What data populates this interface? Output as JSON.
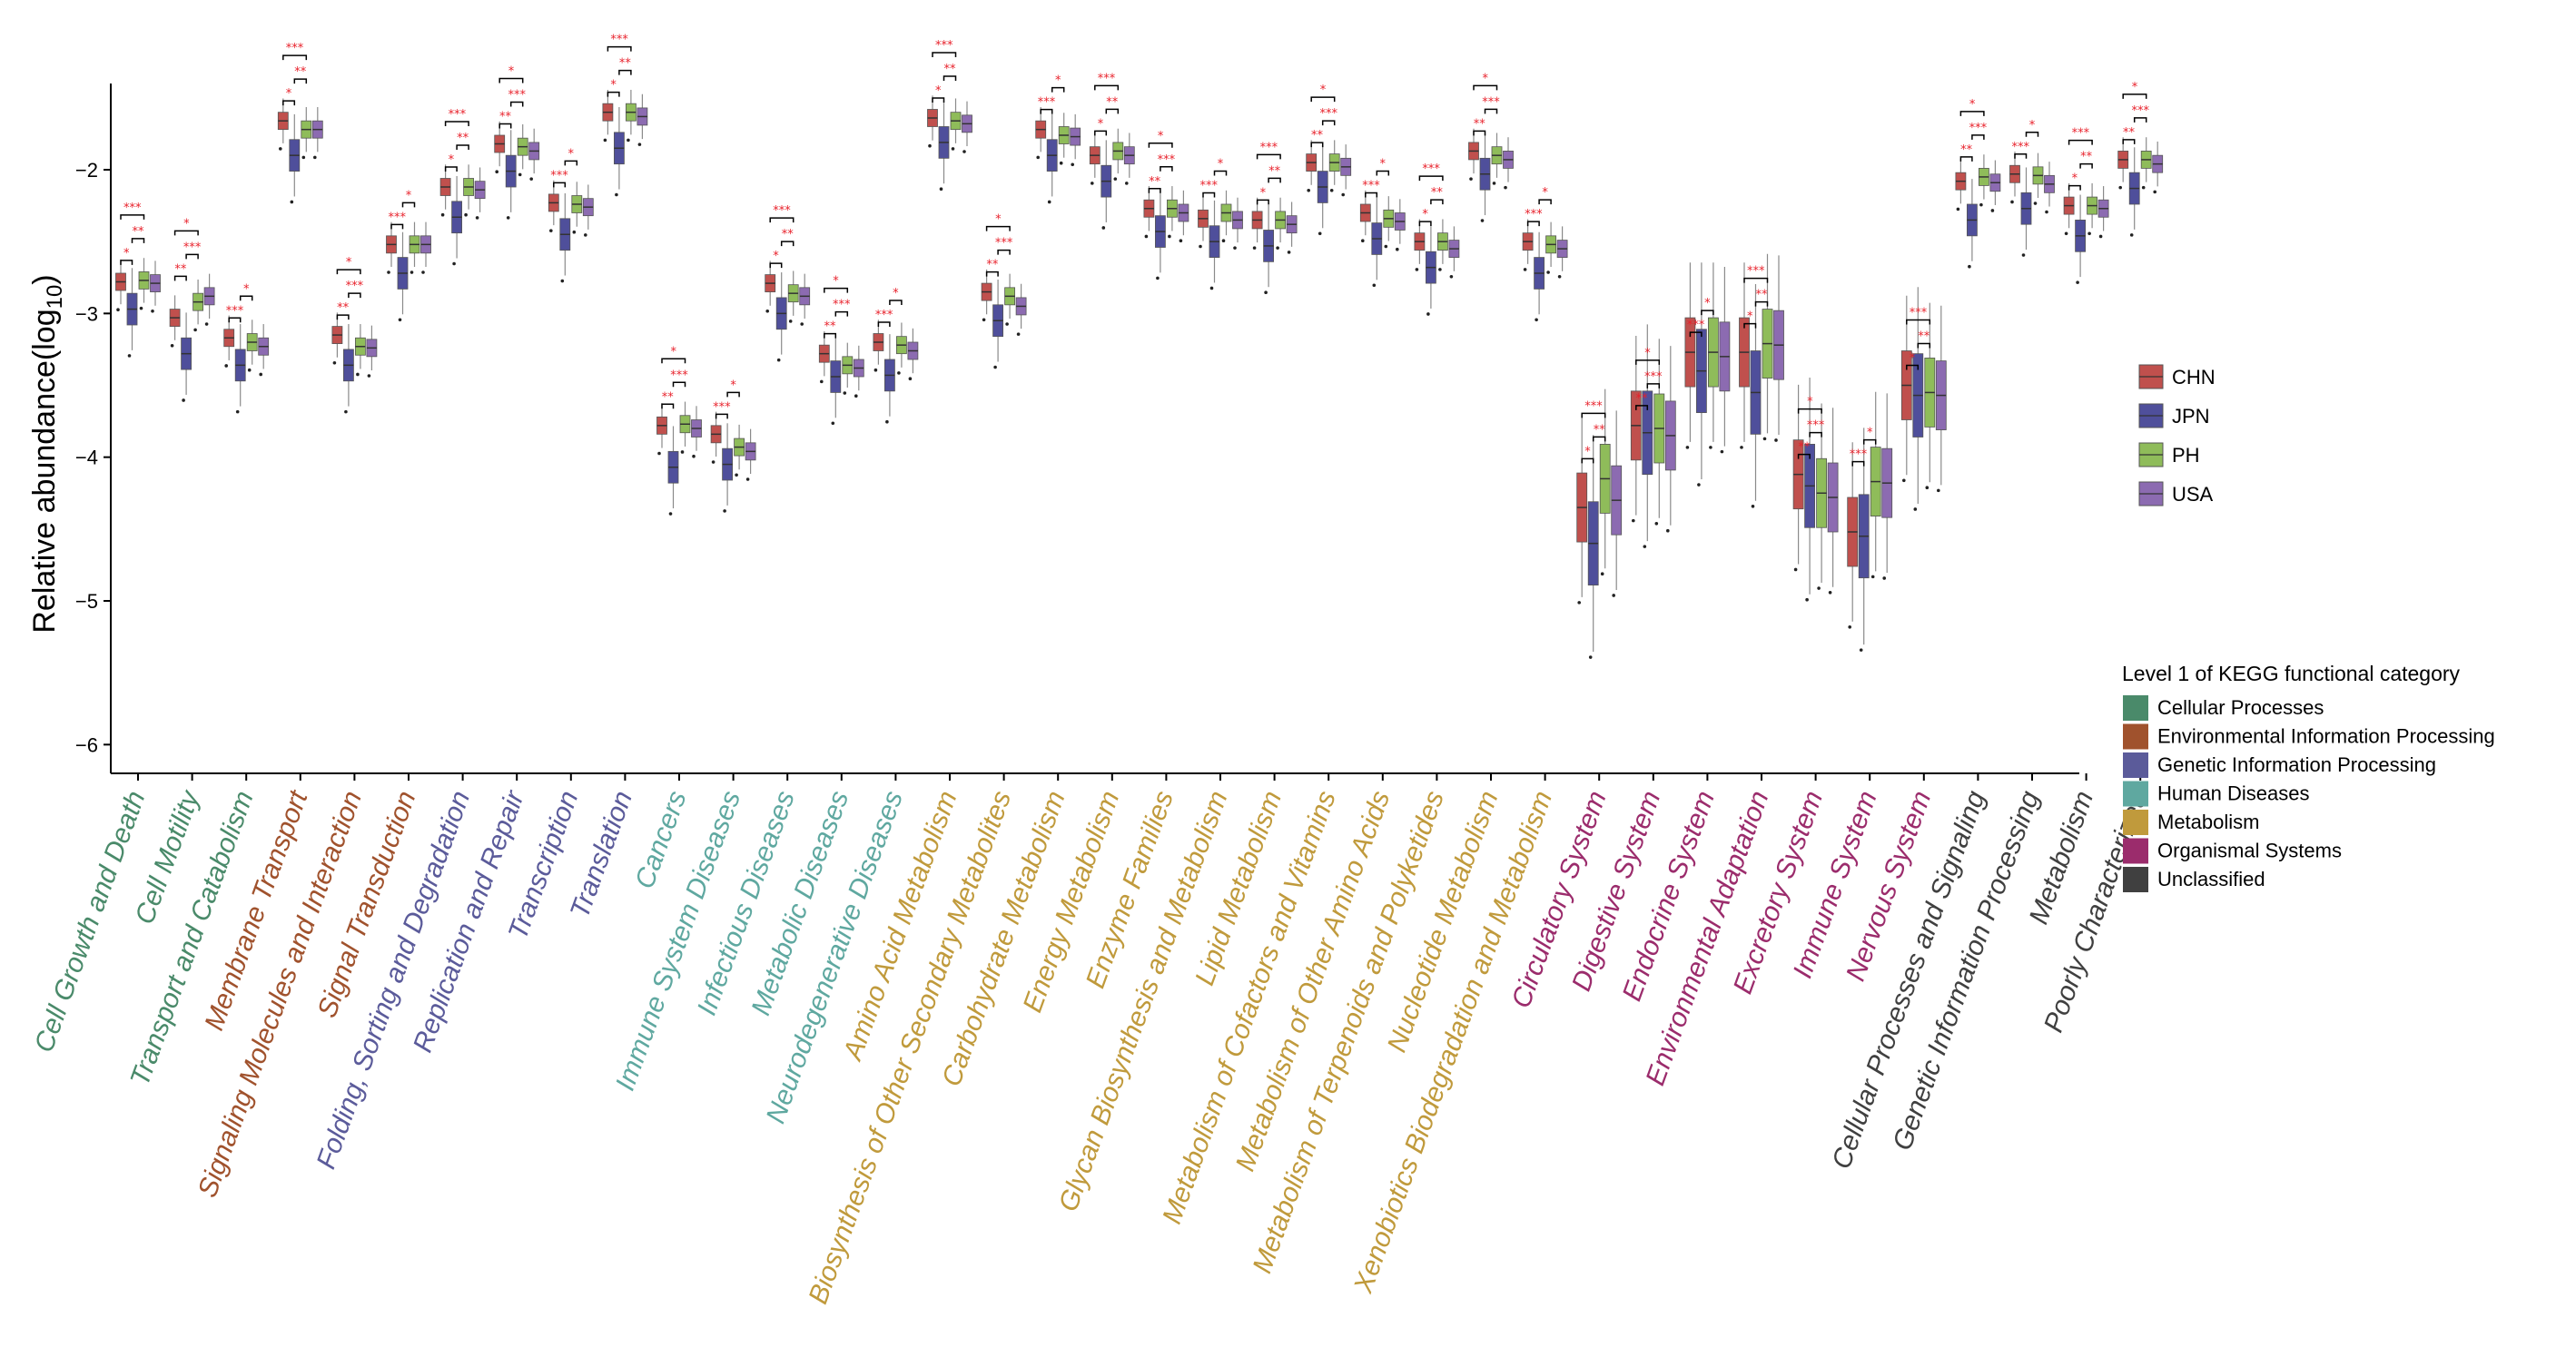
{
  "chart_data": {
    "type": "box",
    "title": "",
    "xlabel": "",
    "ylabel": "Relative abundance(log",
    "ylabel_sub": "10",
    "ylabel_close": ")",
    "ylim": [
      -6.2,
      -1.4
    ],
    "yticks": [
      -2,
      -3,
      -4,
      -5,
      -6
    ],
    "ytick_labels": [
      "−2",
      "−3",
      "−4",
      "−5",
      "−6"
    ],
    "series_names": [
      "CHN",
      "JPN",
      "PH",
      "USA"
    ],
    "series_colors": [
      "#c0504d",
      "#4f4f9b",
      "#8fbc5a",
      "#8c6bb1"
    ],
    "legend_position": "right",
    "legend2_title": "Level 1 of KEGG functional category",
    "level1": [
      {
        "name": "Cellular Processes",
        "color": "#4a8a6a"
      },
      {
        "name": "Environmental Information Processing",
        "color": "#a0522d"
      },
      {
        "name": "Genetic Information Processing",
        "color": "#5b5b9a"
      },
      {
        "name": "Human Diseases",
        "color": "#5fa8a0"
      },
      {
        "name": "Metabolism",
        "color": "#c09a3c"
      },
      {
        "name": "Organismal Systems",
        "color": "#9b2c6c"
      },
      {
        "name": "Unclassified",
        "color": "#404040"
      }
    ],
    "categories": [
      {
        "name": "Cell Growth and Death",
        "level1": 0,
        "medians": [
          -2.78,
          -2.97,
          -2.77,
          -2.79
        ]
      },
      {
        "name": "Cell Motility",
        "level1": 0,
        "medians": [
          -3.03,
          -3.28,
          -2.92,
          -2.88
        ]
      },
      {
        "name": "Transport and Catabolism",
        "level1": 0,
        "medians": [
          -3.17,
          -3.36,
          -3.2,
          -3.23
        ]
      },
      {
        "name": "Membrane Transport",
        "level1": 1,
        "medians": [
          -1.66,
          -1.9,
          -1.72,
          -1.72
        ]
      },
      {
        "name": "Signaling Molecules and Interaction",
        "level1": 1,
        "medians": [
          -3.15,
          -3.36,
          -3.23,
          -3.24
        ]
      },
      {
        "name": "Signal Transduction",
        "level1": 1,
        "medians": [
          -2.52,
          -2.72,
          -2.52,
          -2.52
        ]
      },
      {
        "name": "Folding, Sorting and Degradation",
        "level1": 2,
        "medians": [
          -2.12,
          -2.33,
          -2.12,
          -2.14
        ]
      },
      {
        "name": "Replication and Repair",
        "level1": 2,
        "medians": [
          -1.82,
          -2.01,
          -1.84,
          -1.87
        ]
      },
      {
        "name": "Transcription",
        "level1": 2,
        "medians": [
          -2.23,
          -2.45,
          -2.24,
          -2.26
        ]
      },
      {
        "name": "Translation",
        "level1": 2,
        "medians": [
          -1.6,
          -1.85,
          -1.6,
          -1.63
        ]
      },
      {
        "name": "Cancers",
        "level1": 3,
        "medians": [
          -3.78,
          -4.07,
          -3.77,
          -3.8
        ]
      },
      {
        "name": "Immune System Diseases",
        "level1": 3,
        "medians": [
          -3.84,
          -4.05,
          -3.93,
          -3.96
        ]
      },
      {
        "name": "Infectious Diseases",
        "level1": 3,
        "medians": [
          -2.79,
          -3.0,
          -2.86,
          -2.88
        ]
      },
      {
        "name": "Metabolic Diseases",
        "level1": 3,
        "medians": [
          -3.28,
          -3.44,
          -3.36,
          -3.38
        ]
      },
      {
        "name": "Neurodegenerative Diseases",
        "level1": 3,
        "medians": [
          -3.2,
          -3.43,
          -3.22,
          -3.26
        ]
      },
      {
        "name": "Amino Acid Metabolism",
        "level1": 4,
        "medians": [
          -1.64,
          -1.81,
          -1.66,
          -1.68
        ]
      },
      {
        "name": "Biosynthesis of Other Secondary Metabolites",
        "level1": 4,
        "medians": [
          -2.85,
          -3.05,
          -2.88,
          -2.95
        ]
      },
      {
        "name": "Carbohydrate Metabolism",
        "level1": 4,
        "medians": [
          -1.72,
          -1.9,
          -1.76,
          -1.77
        ]
      },
      {
        "name": "Energy Metabolism",
        "level1": 4,
        "medians": [
          -1.9,
          -2.08,
          -1.87,
          -1.9
        ]
      },
      {
        "name": "Enzyme Families",
        "level1": 4,
        "medians": [
          -2.27,
          -2.43,
          -2.27,
          -2.3
        ]
      },
      {
        "name": "Glycan Biosynthesis and Metabolism",
        "level1": 4,
        "medians": [
          -2.34,
          -2.5,
          -2.3,
          -2.35
        ]
      },
      {
        "name": "Lipid Metabolism",
        "level1": 4,
        "medians": [
          -2.35,
          -2.53,
          -2.35,
          -2.38
        ]
      },
      {
        "name": "Metabolism of Cofactors and Vitamins",
        "level1": 4,
        "medians": [
          -1.95,
          -2.12,
          -1.95,
          -1.98
        ]
      },
      {
        "name": "Metabolism of Other Amino Acids",
        "level1": 4,
        "medians": [
          -2.3,
          -2.48,
          -2.34,
          -2.36
        ]
      },
      {
        "name": "Metabolism of Terpenoids and Polyketides",
        "level1": 4,
        "medians": [
          -2.5,
          -2.68,
          -2.5,
          -2.55
        ]
      },
      {
        "name": "Nucleotide Metabolism",
        "level1": 4,
        "medians": [
          -1.87,
          -2.03,
          -1.9,
          -1.93
        ]
      },
      {
        "name": "Xenobiotics Biodegradation and Metabolism",
        "level1": 4,
        "medians": [
          -2.5,
          -2.72,
          -2.52,
          -2.55
        ]
      },
      {
        "name": "Circulatory System",
        "level1": 5,
        "medians": [
          -4.35,
          -4.6,
          -4.15,
          -4.3
        ]
      },
      {
        "name": "Digestive System",
        "level1": 5,
        "medians": [
          -3.78,
          -3.83,
          -3.8,
          -3.85
        ]
      },
      {
        "name": "Endocrine System",
        "level1": 5,
        "medians": [
          -3.27,
          -3.4,
          -3.27,
          -3.3
        ]
      },
      {
        "name": "Environmental Adaptation",
        "level1": 5,
        "medians": [
          -3.27,
          -3.55,
          -3.21,
          -3.22
        ]
      },
      {
        "name": "Excretory System",
        "level1": 5,
        "medians": [
          -4.12,
          -4.2,
          -4.25,
          -4.28
        ]
      },
      {
        "name": "Immune System",
        "level1": 5,
        "medians": [
          -4.52,
          -4.55,
          -4.17,
          -4.18
        ]
      },
      {
        "name": "Nervous System",
        "level1": 5,
        "medians": [
          -3.5,
          -3.57,
          -3.55,
          -3.57
        ]
      },
      {
        "name": "Cellular Processes and Signaling",
        "level1": 6,
        "medians": [
          -2.08,
          -2.35,
          -2.05,
          -2.09
        ]
      },
      {
        "name": "Genetic Information Processing",
        "level1": 6,
        "medians": [
          -2.03,
          -2.27,
          -2.04,
          -2.1
        ]
      },
      {
        "name": "Metabolism",
        "level1": 6,
        "medians": [
          -2.25,
          -2.46,
          -2.25,
          -2.27
        ]
      },
      {
        "name": "Poorly Characterized",
        "level1": 6,
        "medians": [
          -1.93,
          -2.13,
          -1.93,
          -1.96
        ]
      }
    ],
    "significance_marks": [
      "*",
      "**",
      "***"
    ]
  }
}
